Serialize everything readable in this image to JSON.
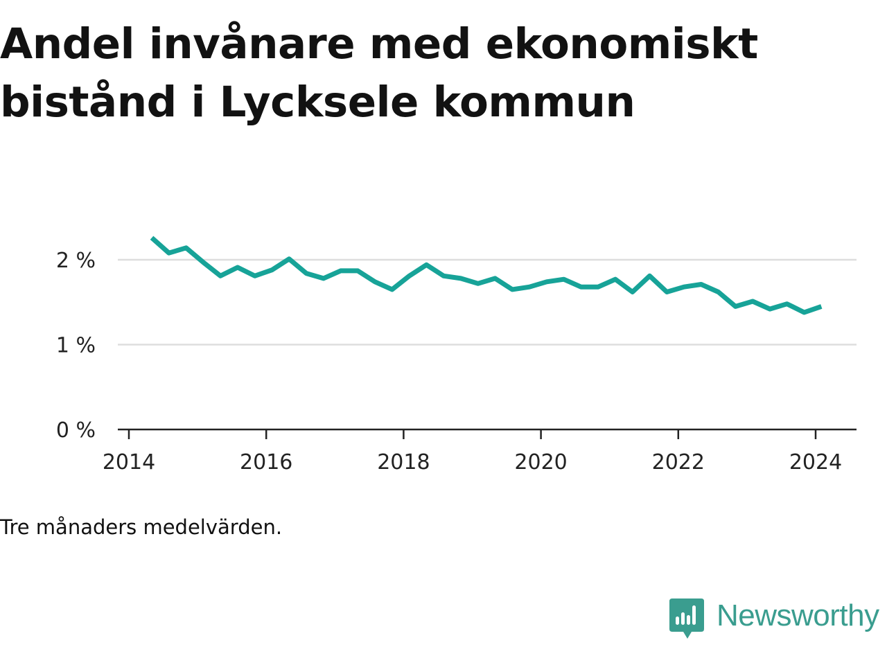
{
  "chart_data": {
    "type": "line",
    "title": "Andel invånare med ekonomiskt bistånd i Lycksele kommun",
    "note": "Tre månaders medelvärden.",
    "xlabel": "",
    "ylabel": "",
    "x_ticks": [
      "2014",
      "2016",
      "2018",
      "2020",
      "2022",
      "2024"
    ],
    "y_ticks": [
      {
        "value": 0,
        "label": "0 %"
      },
      {
        "value": 1,
        "label": "1 %"
      },
      {
        "value": 2,
        "label": "2 %"
      }
    ],
    "ylim": [
      0,
      2.4
    ],
    "xlim": [
      "2014-01",
      "2024-08"
    ],
    "grid": true,
    "line_color": "#17a398",
    "series": [
      {
        "x": [
          "2014-05",
          "2014-08",
          "2014-11",
          "2015-02",
          "2015-05",
          "2015-08",
          "2015-11",
          "2016-02",
          "2016-05",
          "2016-08",
          "2016-11",
          "2017-02",
          "2017-05",
          "2017-08",
          "2017-11",
          "2018-02",
          "2018-05",
          "2018-08",
          "2018-11",
          "2019-02",
          "2019-05",
          "2019-08",
          "2019-11",
          "2020-02",
          "2020-05",
          "2020-08",
          "2020-11",
          "2021-02",
          "2021-05",
          "2021-08",
          "2021-11",
          "2022-02",
          "2022-05",
          "2022-08",
          "2022-11",
          "2023-02",
          "2023-05",
          "2023-08",
          "2023-11",
          "2024-02"
        ],
        "values": [
          2.26,
          2.08,
          2.14,
          1.97,
          1.81,
          1.91,
          1.81,
          1.88,
          2.01,
          1.84,
          1.78,
          1.87,
          1.87,
          1.74,
          1.65,
          1.81,
          1.94,
          1.81,
          1.78,
          1.72,
          1.78,
          1.65,
          1.68,
          1.74,
          1.77,
          1.68,
          1.68,
          1.77,
          1.62,
          1.81,
          1.62,
          1.68,
          1.71,
          1.62,
          1.45,
          1.51,
          1.42,
          1.48,
          1.38,
          1.45
        ]
      }
    ]
  },
  "brand": {
    "name": "Newsworthy",
    "color": "#3a9d8f"
  }
}
